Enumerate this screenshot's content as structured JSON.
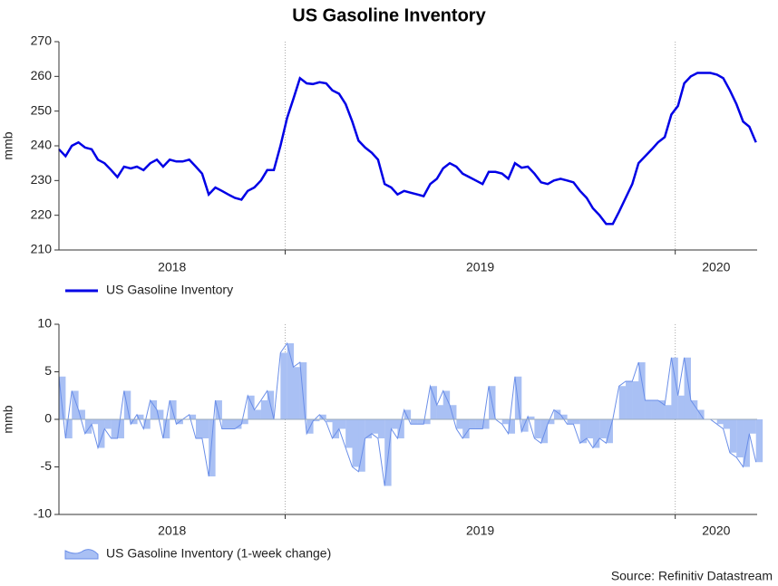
{
  "chart_data": [
    {
      "type": "line",
      "title": "US Gasoline Inventory",
      "ylabel": "mmb",
      "x": [
        2018.42,
        2018.437,
        2018.453,
        2018.47,
        2018.487,
        2018.504,
        2018.52,
        2018.537,
        2018.554,
        2018.57,
        2018.587,
        2018.604,
        2018.62,
        2018.637,
        2018.654,
        2018.671,
        2018.687,
        2018.704,
        2018.721,
        2018.737,
        2018.754,
        2018.771,
        2018.787,
        2018.804,
        2018.821,
        2018.838,
        2018.854,
        2018.871,
        2018.888,
        2018.904,
        2018.921,
        2018.938,
        2018.954,
        2018.971,
        2018.988,
        2019.005,
        2019.021,
        2019.038,
        2019.055,
        2019.071,
        2019.088,
        2019.105,
        2019.121,
        2019.138,
        2019.155,
        2019.172,
        2019.188,
        2019.205,
        2019.222,
        2019.238,
        2019.255,
        2019.272,
        2019.288,
        2019.305,
        2019.322,
        2019.339,
        2019.355,
        2019.372,
        2019.389,
        2019.405,
        2019.422,
        2019.439,
        2019.455,
        2019.472,
        2019.489,
        2019.506,
        2019.522,
        2019.539,
        2019.556,
        2019.572,
        2019.589,
        2019.606,
        2019.622,
        2019.639,
        2019.656,
        2019.673,
        2019.689,
        2019.706,
        2019.723,
        2019.739,
        2019.756,
        2019.773,
        2019.789,
        2019.806,
        2019.823,
        2019.84,
        2019.856,
        2019.873,
        2019.89,
        2019.906,
        2019.923,
        2019.94,
        2019.956,
        2019.973,
        2019.99,
        2020.007,
        2020.023,
        2020.04,
        2020.057,
        2020.073,
        2020.09,
        2020.107,
        2020.123,
        2020.14,
        2020.157,
        2020.174,
        2020.19,
        2020.207
      ],
      "series": [
        {
          "name": "US Gasoline Inventory",
          "color": "#0000e6",
          "values": [
            239,
            237,
            240,
            241,
            239.5,
            239,
            236,
            235,
            233,
            231,
            234,
            233.5,
            234,
            233,
            235,
            236,
            234,
            236,
            235.5,
            235.5,
            236,
            234,
            232,
            226,
            228,
            227,
            226,
            225,
            224.5,
            227,
            228,
            230,
            233,
            233,
            240,
            248,
            253.5,
            259.5,
            258,
            257.8,
            258.3,
            258,
            256,
            255,
            252,
            247,
            241.5,
            239.5,
            238,
            236,
            229,
            228,
            226,
            227,
            226.5,
            226,
            225.5,
            229,
            230.5,
            233.5,
            235,
            234,
            232,
            231,
            230,
            229,
            232.5,
            232.5,
            232,
            230.5,
            235,
            233.7,
            234,
            232,
            229.5,
            229,
            230,
            230.5,
            230,
            229.5,
            227,
            225,
            222,
            220,
            217.5,
            217.5,
            221,
            225,
            229,
            235,
            237,
            239,
            241,
            242.5,
            249,
            251.5,
            258,
            260,
            261,
            261,
            261,
            260.5,
            259.5,
            256,
            252,
            247,
            245.5,
            241
          ]
        }
      ],
      "xlim": [
        2018.42,
        2020.21
      ],
      "xticks": [
        2018,
        2019,
        2020
      ],
      "ylim": [
        210,
        270
      ],
      "yticks": [
        210,
        220,
        230,
        240,
        250,
        260,
        270
      ],
      "grid": true
    },
    {
      "type": "area",
      "ylabel": "mmb",
      "x": [
        2018.42,
        2018.437,
        2018.453,
        2018.47,
        2018.487,
        2018.504,
        2018.52,
        2018.537,
        2018.554,
        2018.57,
        2018.587,
        2018.604,
        2018.62,
        2018.637,
        2018.654,
        2018.671,
        2018.687,
        2018.704,
        2018.721,
        2018.737,
        2018.754,
        2018.771,
        2018.787,
        2018.804,
        2018.821,
        2018.838,
        2018.854,
        2018.871,
        2018.888,
        2018.904,
        2018.921,
        2018.938,
        2018.954,
        2018.971,
        2018.988,
        2019.005,
        2019.021,
        2019.038,
        2019.055,
        2019.071,
        2019.088,
        2019.105,
        2019.121,
        2019.138,
        2019.155,
        2019.172,
        2019.188,
        2019.205,
        2019.222,
        2019.238,
        2019.255,
        2019.272,
        2019.288,
        2019.305,
        2019.322,
        2019.339,
        2019.355,
        2019.372,
        2019.389,
        2019.405,
        2019.422,
        2019.439,
        2019.455,
        2019.472,
        2019.489,
        2019.506,
        2019.522,
        2019.539,
        2019.556,
        2019.572,
        2019.589,
        2019.606,
        2019.622,
        2019.639,
        2019.656,
        2019.673,
        2019.689,
        2019.706,
        2019.723,
        2019.739,
        2019.756,
        2019.773,
        2019.789,
        2019.806,
        2019.823,
        2019.84,
        2019.856,
        2019.873,
        2019.89,
        2019.906,
        2019.923,
        2019.94,
        2019.956,
        2019.973,
        2019.99,
        2020.007,
        2020.023,
        2020.04,
        2020.057,
        2020.073,
        2020.09,
        2020.107,
        2020.123,
        2020.14,
        2020.157,
        2020.174,
        2020.19,
        2020.207
      ],
      "series": [
        {
          "name": "US Gasoline Inventory (1-week change)",
          "color": "#6a8ee8",
          "values": [
            4.5,
            -2,
            3,
            1,
            -1.5,
            -0.5,
            -3,
            -1,
            -2,
            -2,
            3,
            -0.5,
            0.5,
            -1,
            2,
            1,
            -2,
            2,
            -0.5,
            0,
            0.5,
            -2,
            -2,
            -6,
            2,
            -1,
            -1,
            -1,
            -0.5,
            2.5,
            1,
            2,
            3,
            0,
            7,
            8,
            5.5,
            6,
            -1.5,
            -0.2,
            0.5,
            -0.3,
            -2,
            -1,
            -3,
            -5,
            -5.5,
            -2,
            -1.5,
            -2,
            -7,
            -1,
            -2,
            1,
            -0.5,
            -0.5,
            -0.5,
            3.5,
            1.5,
            3,
            1.5,
            -1,
            -2,
            -1,
            -1,
            -1,
            3.5,
            0,
            -0.5,
            -1.5,
            4.5,
            -1.3,
            0.3,
            -2,
            -2.5,
            -0.5,
            1,
            0.5,
            -0.5,
            -0.5,
            -2.5,
            -2,
            -3,
            -2,
            -2.5,
            0,
            3.5,
            4,
            4,
            6,
            2,
            2,
            2,
            1.5,
            6.5,
            2.5,
            6.5,
            2,
            1,
            0,
            0,
            -0.5,
            -1,
            -3.5,
            -4,
            -5,
            -1.5,
            -4.5
          ]
        }
      ],
      "xlim": [
        2018.42,
        2020.21
      ],
      "xticks": [
        2018,
        2019,
        2020
      ],
      "ylim": [
        -10,
        10
      ],
      "yticks": [
        -10,
        -5,
        0,
        5,
        10
      ],
      "grid": true
    }
  ],
  "source": "Source: Refinitiv Datastream"
}
